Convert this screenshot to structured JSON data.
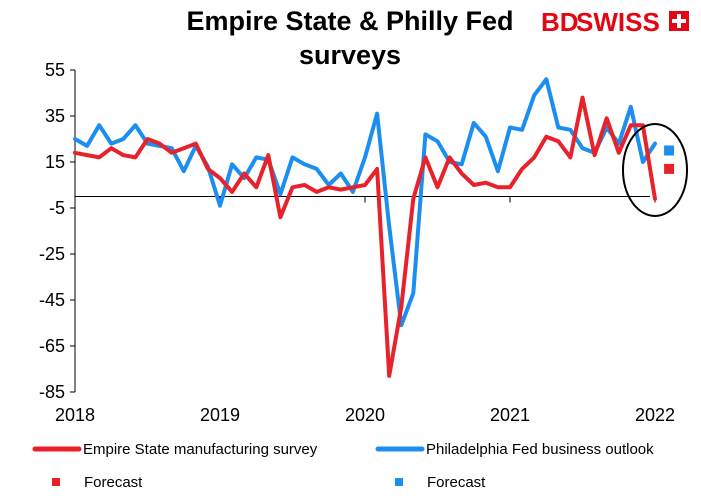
{
  "brand": {
    "logo_text_left": "BD",
    "logo_text_right": "SWISS",
    "logo_color": "#e30613"
  },
  "chart_data": {
    "type": "line",
    "title_line1": "Empire State & Philly Fed",
    "title_line2": "surveys",
    "xlabel": "",
    "ylabel": "",
    "ylim": [
      -85,
      55
    ],
    "y_ticks": [
      55,
      35,
      15,
      -5,
      -25,
      -45,
      -65,
      -85
    ],
    "y_tick_labels": [
      "55",
      "35",
      "15",
      "-5",
      "-25",
      "-45",
      "-65",
      "-85"
    ],
    "x_ticks": [
      "2018",
      "2019",
      "2020",
      "2021",
      "2022"
    ],
    "zero_line": 0,
    "x_start": "2018-01",
    "grid": false,
    "legend_position": "bottom",
    "series": [
      {
        "name": "Empire State manufacturing survey",
        "color": "#e8222a",
        "values": [
          19,
          18,
          17,
          21,
          18,
          17,
          25,
          23,
          19,
          21,
          23,
          12,
          8,
          2,
          10,
          4,
          18,
          -9,
          4,
          5,
          2,
          4,
          3,
          4,
          5,
          12,
          -78,
          -48,
          -1,
          17,
          4,
          17,
          10,
          5,
          6,
          4,
          4,
          12,
          17,
          26,
          24,
          17,
          43,
          18,
          34,
          19,
          31,
          31,
          -1
        ],
        "forecast": 12
      },
      {
        "name": "Philadelphia Fed business outlook",
        "color": "#1c8ef0",
        "values": [
          25,
          22,
          31,
          23,
          25,
          31,
          23,
          22,
          21,
          11,
          22,
          13,
          -4,
          14,
          8,
          17,
          16,
          1,
          17,
          14,
          12,
          5,
          10,
          2,
          17,
          36,
          -13,
          -56,
          -42,
          27,
          24,
          15,
          14,
          32,
          26,
          11,
          30,
          29,
          44,
          51,
          30,
          29,
          21,
          19,
          30,
          23,
          39,
          15,
          23
        ],
        "forecast": 20
      }
    ],
    "legend": [
      {
        "label": "Empire State manufacturing survey",
        "kind": "line",
        "color": "#e8222a"
      },
      {
        "label": "Philadelphia Fed business outlook",
        "kind": "line",
        "color": "#1c8ef0"
      },
      {
        "label": "Forecast",
        "kind": "marker",
        "color": "#e8222a"
      },
      {
        "label": "Forecast",
        "kind": "marker",
        "color": "#1c8ef0"
      }
    ],
    "annotation": "ellipse around latest readings and forecasts"
  }
}
